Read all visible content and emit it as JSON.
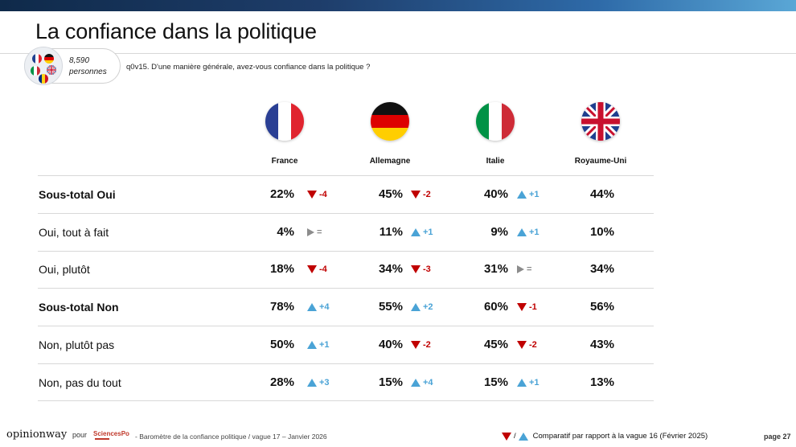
{
  "title": "La confiance dans la politique",
  "sample": {
    "count": "8,590",
    "unit": "personnes"
  },
  "question": "q0v15. D'une manière générale, avez-vous confiance dans la politique ?",
  "countries": [
    {
      "name": "France",
      "flag": "france-flag-icon"
    },
    {
      "name": "Allemagne",
      "flag": "germany-flag-icon"
    },
    {
      "name": "Italie",
      "flag": "italy-flag-icon"
    },
    {
      "name": "Royaume-Uni",
      "flag": "uk-flag-icon"
    }
  ],
  "rows": [
    {
      "label": "Sous-total Oui",
      "bold": true,
      "cells": [
        {
          "value": "22%",
          "trend": "down",
          "change": "-4"
        },
        {
          "value": "45%",
          "trend": "down",
          "change": "-2"
        },
        {
          "value": "40%",
          "trend": "up",
          "change": "+1"
        },
        {
          "value": "44%"
        }
      ]
    },
    {
      "label": "Oui, tout à fait",
      "bold": false,
      "cells": [
        {
          "value": "4%",
          "trend": "flat",
          "change": "="
        },
        {
          "value": "11%",
          "trend": "up",
          "change": "+1"
        },
        {
          "value": "9%",
          "trend": "up",
          "change": "+1"
        },
        {
          "value": "10%"
        }
      ]
    },
    {
      "label": "Oui, plutôt",
      "bold": false,
      "cells": [
        {
          "value": "18%",
          "trend": "down",
          "change": "-4"
        },
        {
          "value": "34%",
          "trend": "down",
          "change": "-3"
        },
        {
          "value": "31%",
          "trend": "flat",
          "change": "="
        },
        {
          "value": "34%"
        }
      ]
    },
    {
      "label": "Sous-total Non",
      "bold": true,
      "cells": [
        {
          "value": "78%",
          "trend": "up",
          "change": "+4"
        },
        {
          "value": "55%",
          "trend": "up",
          "change": "+2"
        },
        {
          "value": "60%",
          "trend": "down",
          "change": "-1"
        },
        {
          "value": "56%"
        }
      ]
    },
    {
      "label": "Non, plutôt pas",
      "bold": false,
      "cells": [
        {
          "value": "50%",
          "trend": "up",
          "change": "+1"
        },
        {
          "value": "40%",
          "trend": "down",
          "change": "-2"
        },
        {
          "value": "45%",
          "trend": "down",
          "change": "-2"
        },
        {
          "value": "43%"
        }
      ]
    },
    {
      "label": "Non, pas du tout",
      "bold": false,
      "cells": [
        {
          "value": "28%",
          "trend": "up",
          "change": "+3"
        },
        {
          "value": "15%",
          "trend": "up",
          "change": "+4"
        },
        {
          "value": "15%",
          "trend": "up",
          "change": "+1"
        },
        {
          "value": "13%"
        }
      ]
    }
  ],
  "footer": {
    "brand": "opinionway",
    "pour": "pour",
    "partner": "SciencesPo",
    "caption": "- Baromètre de la confiance politique / vague 17 – Janvier 2026",
    "legend_sep": "/",
    "legend_text": "Comparatif par rapport à la vague 16 (Février 2025)",
    "page": "page 27"
  },
  "colors": {
    "down": "#c00000",
    "up": "#4aa3d6",
    "flat": "#8c8c8c"
  }
}
